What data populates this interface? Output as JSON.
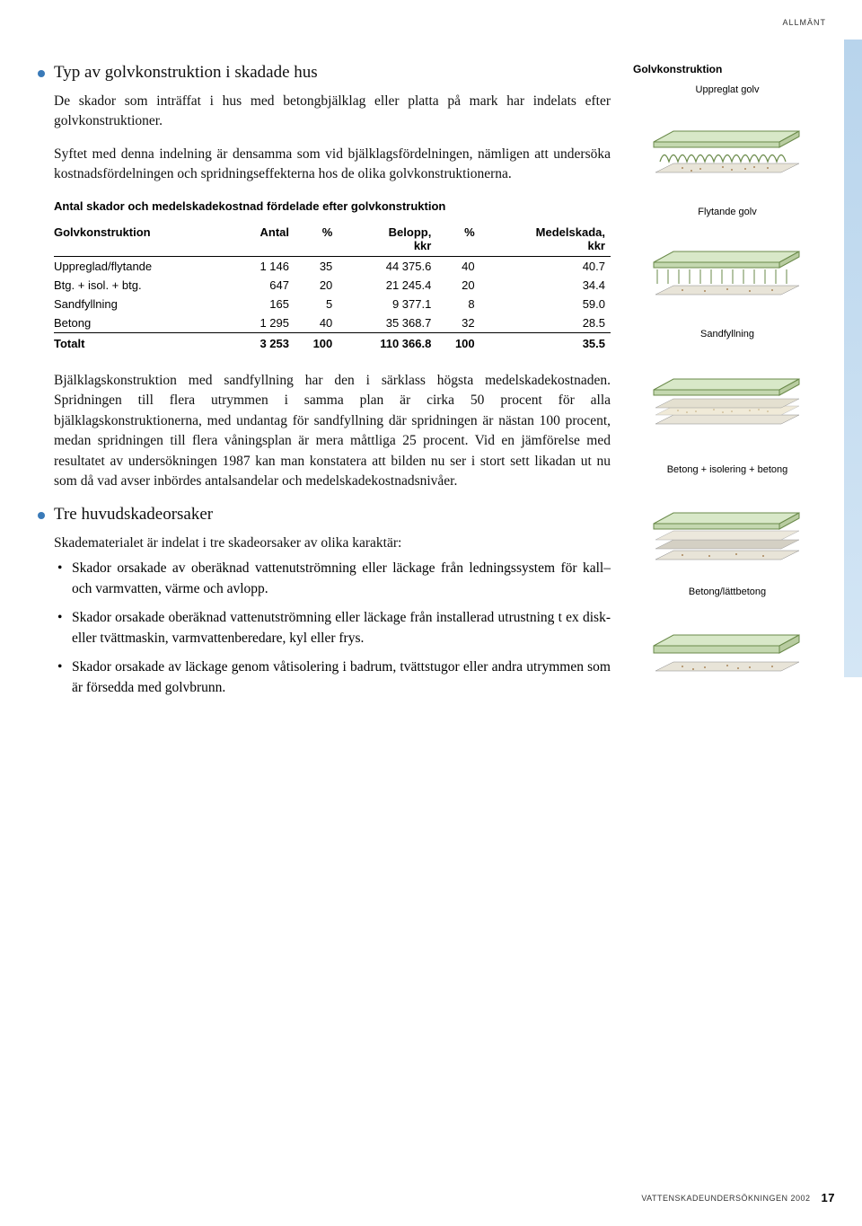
{
  "header_tag": "ALLMÄNT",
  "section1": {
    "title": "Typ av golvkonstruktion i skadade hus",
    "p1": "De skador som inträffat i hus med betongbjälklag eller platta på mark har indelats efter golvkonstruktioner.",
    "p2": "Syftet med denna indelning är densamma som vid bjälklagsfördelningen, nämligen att undersöka kostnadsfördelningen och spridningseffekterna hos de olika golvkonstruktionerna."
  },
  "table": {
    "title": "Antal skador och medelskadekostnad fördelade efter golvkonstruktion",
    "columns": [
      "Golvkonstruktion",
      "Antal",
      "%",
      "Belopp, kkr",
      "%",
      "Medelskada, kkr"
    ],
    "rows": [
      [
        "Uppreglad/flytande",
        "1 146",
        "35",
        "44 375.6",
        "40",
        "40.7"
      ],
      [
        "Btg. + isol. + btg.",
        "647",
        "20",
        "21 245.4",
        "20",
        "34.4"
      ],
      [
        "Sandfyllning",
        "165",
        "5",
        "9 377.1",
        "8",
        "59.0"
      ],
      [
        "Betong",
        "1 295",
        "40",
        "35 368.7",
        "32",
        "28.5"
      ]
    ],
    "total": [
      "Totalt",
      "3 253",
      "100",
      "110 366.8",
      "100",
      "35.5"
    ]
  },
  "section2_p": "Bjälklagskonstruktion med sandfyllning har den i särklass högsta medelskadekostnaden. Spridningen till flera utrymmen i samma plan är cirka 50 procent för alla bjälklagskonstruktionerna, med undantag för sandfyllning där spridningen är nästan 100 procent, medan spridningen till flera våningsplan är mera måttliga 25 procent. Vid en jämförelse med resultatet av undersökningen 1987 kan man konstatera att bilden nu ser i stort sett likadan ut nu som då vad avser inbördes antalsandelar och medelskadekostnadsnivåer.",
  "section3": {
    "title": "Tre huvudskadeorsaker",
    "intro": "Skadematerialet är indelat i tre skadeorsaker av olika karaktär:",
    "items": [
      "Skador orsakade av oberäknad vattenutströmning eller läckage från ledningssystem för kall– och varmvatten, värme och avlopp.",
      "Skador orsakade oberäknad vattenutströmning eller läckage från installerad utrustning t ex disk- eller tvättmaskin, varmvattenberedare, kyl eller frys.",
      "Skador orsakade av läckage genom våtisolering i badrum, tvättstugor eller andra utrymmen som är försedda med golvbrunn."
    ]
  },
  "side": {
    "heading": "Golvkonstruktion",
    "labels": [
      "Uppreglat golv",
      "Flytande golv",
      "Sandfyllning",
      "Betong + isolering + betong",
      "Betong/lättbetong"
    ]
  },
  "diagram_colors": {
    "slab_fill": "#d8e8c8",
    "slab_stroke": "#6a8a4a",
    "base_fill": "#e8e4d8",
    "base_stroke": "#888",
    "dots": "#a8865a"
  },
  "footer": {
    "text": "VATTENSKADEUNDERSÖKNINGEN 2002",
    "page": "17"
  }
}
